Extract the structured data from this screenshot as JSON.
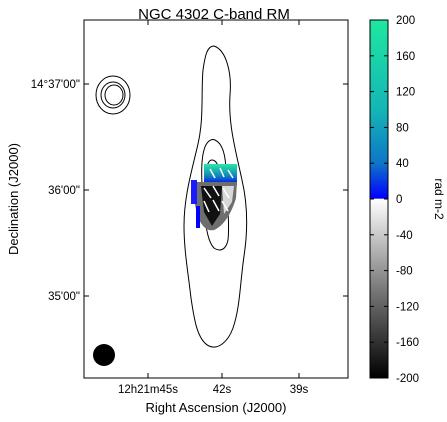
{
  "chart_data": {
    "type": "heatmap",
    "title": "NGC 4302   C-band   RM",
    "xlabel": "Right Ascension (J2000)",
    "ylabel": "Declination (J2000)",
    "xticks": [
      "12h21m45s",
      "42s",
      "39s"
    ],
    "yticks": [
      "14°37'00\"",
      "36'00\"",
      "35'00\""
    ],
    "colorbar": {
      "label": "rad m-2",
      "range": [
        -200,
        200
      ],
      "ticks": [
        200,
        160,
        120,
        80,
        40,
        0,
        -40,
        -80,
        -120,
        -160,
        -200
      ],
      "colors": {
        "top": "#1fe7a0",
        "upper_mid": "#0f75c8",
        "zero_blue": "#0000ff",
        "zero_white": "#ffffff",
        "bottom": "#000000"
      }
    },
    "grid": false,
    "contours": "black outlines of NGC 4302 disk",
    "beam": "filled black circle at lower-left"
  }
}
